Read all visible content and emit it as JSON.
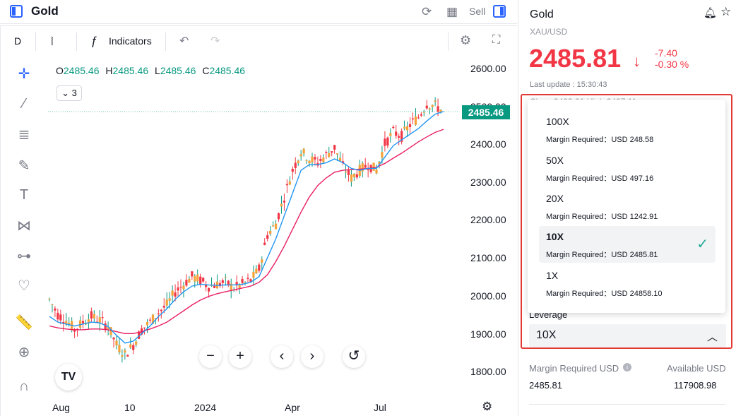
{
  "header": {
    "title": "Gold",
    "sell_label": "Sell"
  },
  "toolbar": {
    "interval": "D",
    "indicators_label": "Indicators"
  },
  "legend": {
    "o_label": "O",
    "o_value": "2485.46",
    "h_label": "H",
    "h_value": "2485.46",
    "l_label": "L",
    "l_value": "2485.46",
    "c_label": "C",
    "c_value": "2485.46",
    "indicator_count": "3"
  },
  "chart_data": {
    "type": "candlestick",
    "y_ticks": [
      "2600.00",
      "2500.00",
      "2400.00",
      "2300.00",
      "2200.00",
      "2100.00",
      "2000.00",
      "1900.00",
      "1800.00"
    ],
    "x_ticks": [
      "Aug",
      "10",
      "2024",
      "Apr",
      "Jul"
    ],
    "ylim": [
      1780,
      2620
    ],
    "last_price": "2485.46",
    "close_trend": [
      1990,
      1950,
      1935,
      1910,
      1930,
      1945,
      1935,
      1920,
      1870,
      1845,
      1870,
      1910,
      1930,
      1955,
      1975,
      2010,
      2030,
      2050,
      2040,
      2025,
      2030,
      2035,
      2020,
      2030,
      2040,
      2070,
      2160,
      2190,
      2260,
      2330,
      2380,
      2360,
      2350,
      2370,
      2390,
      2340,
      2310,
      2330,
      2345,
      2330,
      2400,
      2430,
      2420,
      2450,
      2470,
      2505,
      2500,
      2485
    ],
    "ma_fast": [
      1945,
      1930,
      1925,
      1920,
      1925,
      1930,
      1928,
      1918,
      1895,
      1875,
      1880,
      1900,
      1920,
      1945,
      1965,
      1990,
      2010,
      2025,
      2030,
      2028,
      2027,
      2028,
      2028,
      2030,
      2035,
      2050,
      2100,
      2150,
      2210,
      2270,
      2330,
      2345,
      2345,
      2350,
      2360,
      2350,
      2335,
      2330,
      2335,
      2335,
      2365,
      2395,
      2410,
      2425,
      2440,
      2460,
      2478,
      2485
    ],
    "ma_slow": [
      1920,
      1915,
      1912,
      1910,
      1910,
      1912,
      1912,
      1910,
      1905,
      1900,
      1900,
      1905,
      1912,
      1920,
      1930,
      1945,
      1960,
      1975,
      1988,
      1998,
      2005,
      2010,
      2015,
      2020,
      2025,
      2035,
      2055,
      2090,
      2130,
      2175,
      2220,
      2260,
      2290,
      2310,
      2325,
      2330,
      2332,
      2333,
      2335,
      2338,
      2348,
      2362,
      2375,
      2390,
      2405,
      2418,
      2430,
      2438
    ],
    "colors": {
      "up": "#089981",
      "down": "#f23645",
      "ma_fast": "#2196f3",
      "ma_slow": "#e91e63",
      "candle_body_up": "#f5a23a"
    }
  },
  "right_panel": {
    "title": "Gold",
    "symbol": "XAU/USD",
    "price": "2485.81",
    "change": "-7.40",
    "change_pct": "-0.30 %",
    "last_update": "Last update : 15:30:43",
    "partial_row": "Close 2493.21     High 2497.11",
    "leverage_label": "Leverage",
    "leverage_value": "10X",
    "options": [
      {
        "label": "100X",
        "requirement": "Margin Required：USD 248.58"
      },
      {
        "label": "50X",
        "requirement": "Margin Required：USD 497.16"
      },
      {
        "label": "20X",
        "requirement": "Margin Required：USD 1242.91"
      },
      {
        "label": "10X",
        "requirement": "Margin Required：USD 2485.81",
        "selected": true
      },
      {
        "label": "1X",
        "requirement": "Margin Required：USD 24858.10"
      }
    ],
    "margin_required_label": "Margin Required USD",
    "available_label": "Available USD",
    "margin_required_value": "2485.81",
    "available_value": "117908.98"
  }
}
